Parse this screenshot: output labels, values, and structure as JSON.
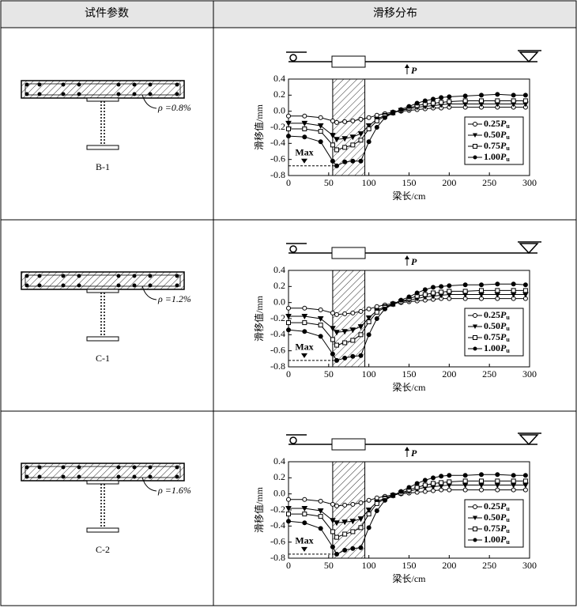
{
  "table": {
    "header": [
      "试件参数",
      "滑移分布"
    ],
    "rows": [
      {
        "specimen": "B-1",
        "rho": "ρ =0.8%"
      },
      {
        "specimen": "C-1",
        "rho": "ρ =1.2%"
      },
      {
        "specimen": "C-2",
        "rho": "ρ =1.6%"
      }
    ]
  },
  "chart_data": [
    {
      "type": "line",
      "xlabel": "梁长/cm",
      "ylabel": "滑移值/mm",
      "annotations": {
        "max": "Max",
        "load": "P"
      },
      "shaded_region": [
        55,
        95
      ],
      "legend": "right",
      "xlim": [
        0,
        300
      ],
      "ylim": [
        -0.8,
        0.4
      ],
      "xticks": [
        0,
        50,
        100,
        150,
        200,
        250,
        300
      ],
      "yticks": [
        0.4,
        0.2,
        {
          "value": 0,
          "label": "0.0"
        },
        -0.2,
        -0.4,
        -0.6,
        -0.8
      ],
      "x": [
        0,
        20,
        40,
        55,
        60,
        70,
        80,
        90,
        100,
        110,
        120,
        130,
        140,
        150,
        160,
        170,
        180,
        190,
        200,
        220,
        240,
        260,
        280,
        295
      ],
      "series": [
        {
          "name": "0.25Pu",
          "color": "#000000",
          "marker": "open-circle",
          "values": [
            -0.06,
            -0.06,
            -0.08,
            -0.12,
            -0.14,
            -0.13,
            -0.12,
            -0.1,
            -0.08,
            -0.05,
            -0.03,
            -0.01,
            0.0,
            0.01,
            0.02,
            0.03,
            0.04,
            0.04,
            0.05,
            0.05,
            0.05,
            0.05,
            0.05,
            0.05
          ]
        },
        {
          "name": "0.50Pu",
          "color": "#000000",
          "marker": "filled-triangle",
          "values": [
            -0.15,
            -0.15,
            -0.18,
            -0.3,
            -0.35,
            -0.34,
            -0.32,
            -0.28,
            -0.18,
            -0.1,
            -0.05,
            -0.02,
            0.01,
            0.03,
            0.05,
            0.06,
            0.07,
            0.08,
            0.09,
            0.09,
            0.09,
            0.09,
            0.09,
            0.09
          ]
        },
        {
          "name": "0.75Pu",
          "color": "#000000",
          "marker": "open-square",
          "values": [
            -0.22,
            -0.22,
            -0.25,
            -0.42,
            -0.48,
            -0.45,
            -0.42,
            -0.36,
            -0.22,
            -0.12,
            -0.06,
            -0.02,
            0.01,
            0.04,
            0.07,
            0.09,
            0.1,
            0.11,
            0.12,
            0.13,
            0.13,
            0.13,
            0.13,
            0.13
          ]
        },
        {
          "name": "1.00Pu",
          "color": "#000000",
          "marker": "filled-circle",
          "values": [
            -0.31,
            -0.32,
            -0.38,
            -0.62,
            -0.68,
            -0.63,
            -0.62,
            -0.62,
            -0.38,
            -0.2,
            -0.08,
            -0.02,
            0.02,
            0.06,
            0.1,
            0.13,
            0.15,
            0.17,
            0.18,
            0.19,
            0.2,
            0.21,
            0.2,
            0.2
          ]
        }
      ]
    },
    {
      "type": "line",
      "xlabel": "梁长/cm",
      "ylabel": "滑移值/mm",
      "annotations": {
        "max": "Max",
        "load": "P"
      },
      "shaded_region": [
        55,
        95
      ],
      "legend": "right",
      "xlim": [
        0,
        300
      ],
      "ylim": [
        -0.8,
        0.4
      ],
      "xticks": [
        0,
        50,
        100,
        150,
        200,
        250,
        300
      ],
      "yticks": [
        0.4,
        0.2,
        {
          "value": 0,
          "label": "0.0"
        },
        -0.2,
        -0.4,
        -0.6,
        -0.8
      ],
      "x": [
        0,
        20,
        40,
        55,
        60,
        70,
        80,
        90,
        100,
        110,
        120,
        130,
        140,
        150,
        160,
        170,
        180,
        190,
        200,
        220,
        240,
        260,
        280,
        295
      ],
      "series": [
        {
          "name": "0.25Pu",
          "color": "#000000",
          "marker": "open-circle",
          "values": [
            -0.07,
            -0.07,
            -0.09,
            -0.13,
            -0.15,
            -0.14,
            -0.13,
            -0.11,
            -0.08,
            -0.05,
            -0.03,
            -0.01,
            0.0,
            0.01,
            0.02,
            0.03,
            0.04,
            0.05,
            0.05,
            0.05,
            0.05,
            0.05,
            0.05,
            0.05
          ]
        },
        {
          "name": "0.50Pu",
          "color": "#000000",
          "marker": "filled-triangle",
          "values": [
            -0.17,
            -0.17,
            -0.2,
            -0.32,
            -0.37,
            -0.36,
            -0.34,
            -0.3,
            -0.19,
            -0.1,
            -0.05,
            -0.02,
            0.01,
            0.03,
            0.05,
            0.07,
            0.08,
            0.09,
            0.1,
            0.1,
            0.1,
            0.1,
            0.1,
            0.1
          ]
        },
        {
          "name": "0.75Pu",
          "color": "#000000",
          "marker": "open-square",
          "values": [
            -0.25,
            -0.25,
            -0.28,
            -0.46,
            -0.53,
            -0.5,
            -0.47,
            -0.4,
            -0.24,
            -0.12,
            -0.06,
            -0.02,
            0.01,
            0.05,
            0.08,
            0.1,
            0.12,
            0.13,
            0.14,
            0.14,
            0.15,
            0.15,
            0.15,
            0.15
          ]
        },
        {
          "name": "1.00Pu",
          "color": "#000000",
          "marker": "filled-circle",
          "values": [
            -0.34,
            -0.36,
            -0.42,
            -0.64,
            -0.72,
            -0.69,
            -0.67,
            -0.66,
            -0.4,
            -0.2,
            -0.08,
            -0.02,
            0.03,
            0.07,
            0.12,
            0.16,
            0.19,
            0.2,
            0.21,
            0.22,
            0.22,
            0.23,
            0.23,
            0.22
          ]
        }
      ]
    },
    {
      "type": "line",
      "xlabel": "梁长/cm",
      "ylabel": "滑移值/mm",
      "annotations": {
        "max": "Max",
        "load": "P"
      },
      "shaded_region": [
        55,
        95
      ],
      "legend": "right",
      "xlim": [
        0,
        300
      ],
      "ylim": [
        -0.8,
        0.4
      ],
      "xticks": [
        0,
        50,
        100,
        150,
        200,
        250,
        300
      ],
      "yticks": [
        0.4,
        0.2,
        {
          "value": 0,
          "label": "0.0"
        },
        -0.2,
        -0.4,
        -0.6,
        -0.8
      ],
      "x": [
        0,
        20,
        40,
        55,
        60,
        70,
        80,
        90,
        100,
        110,
        120,
        130,
        140,
        150,
        160,
        170,
        180,
        190,
        200,
        220,
        240,
        260,
        280,
        295
      ],
      "series": [
        {
          "name": "0.25Pu",
          "color": "#000000",
          "marker": "open-circle",
          "values": [
            -0.07,
            -0.07,
            -0.09,
            -0.13,
            -0.15,
            -0.14,
            -0.13,
            -0.11,
            -0.08,
            -0.05,
            -0.03,
            -0.01,
            0.0,
            0.01,
            0.02,
            0.03,
            0.04,
            0.05,
            0.05,
            0.05,
            0.05,
            0.05,
            0.05,
            0.05
          ]
        },
        {
          "name": "0.50Pu",
          "color": "#000000",
          "marker": "filled-triangle",
          "values": [
            -0.18,
            -0.18,
            -0.21,
            -0.33,
            -0.36,
            -0.35,
            -0.34,
            -0.31,
            -0.2,
            -0.1,
            -0.05,
            -0.02,
            0.01,
            0.03,
            0.06,
            0.08,
            0.09,
            0.1,
            0.11,
            0.11,
            0.11,
            0.11,
            0.11,
            0.11
          ]
        },
        {
          "name": "0.75Pu",
          "color": "#000000",
          "marker": "open-square",
          "values": [
            -0.25,
            -0.25,
            -0.28,
            -0.47,
            -0.54,
            -0.5,
            -0.47,
            -0.42,
            -0.25,
            -0.12,
            -0.06,
            -0.02,
            0.01,
            0.05,
            0.08,
            0.11,
            0.13,
            0.14,
            0.15,
            0.16,
            0.16,
            0.16,
            0.16,
            0.16
          ]
        },
        {
          "name": "1.00Pu",
          "color": "#000000",
          "marker": "filled-circle",
          "values": [
            -0.34,
            -0.36,
            -0.43,
            -0.66,
            -0.75,
            -0.7,
            -0.68,
            -0.67,
            -0.42,
            -0.21,
            -0.08,
            -0.02,
            0.03,
            0.08,
            0.13,
            0.17,
            0.2,
            0.22,
            0.23,
            0.23,
            0.24,
            0.24,
            0.23,
            0.23
          ]
        }
      ]
    }
  ]
}
